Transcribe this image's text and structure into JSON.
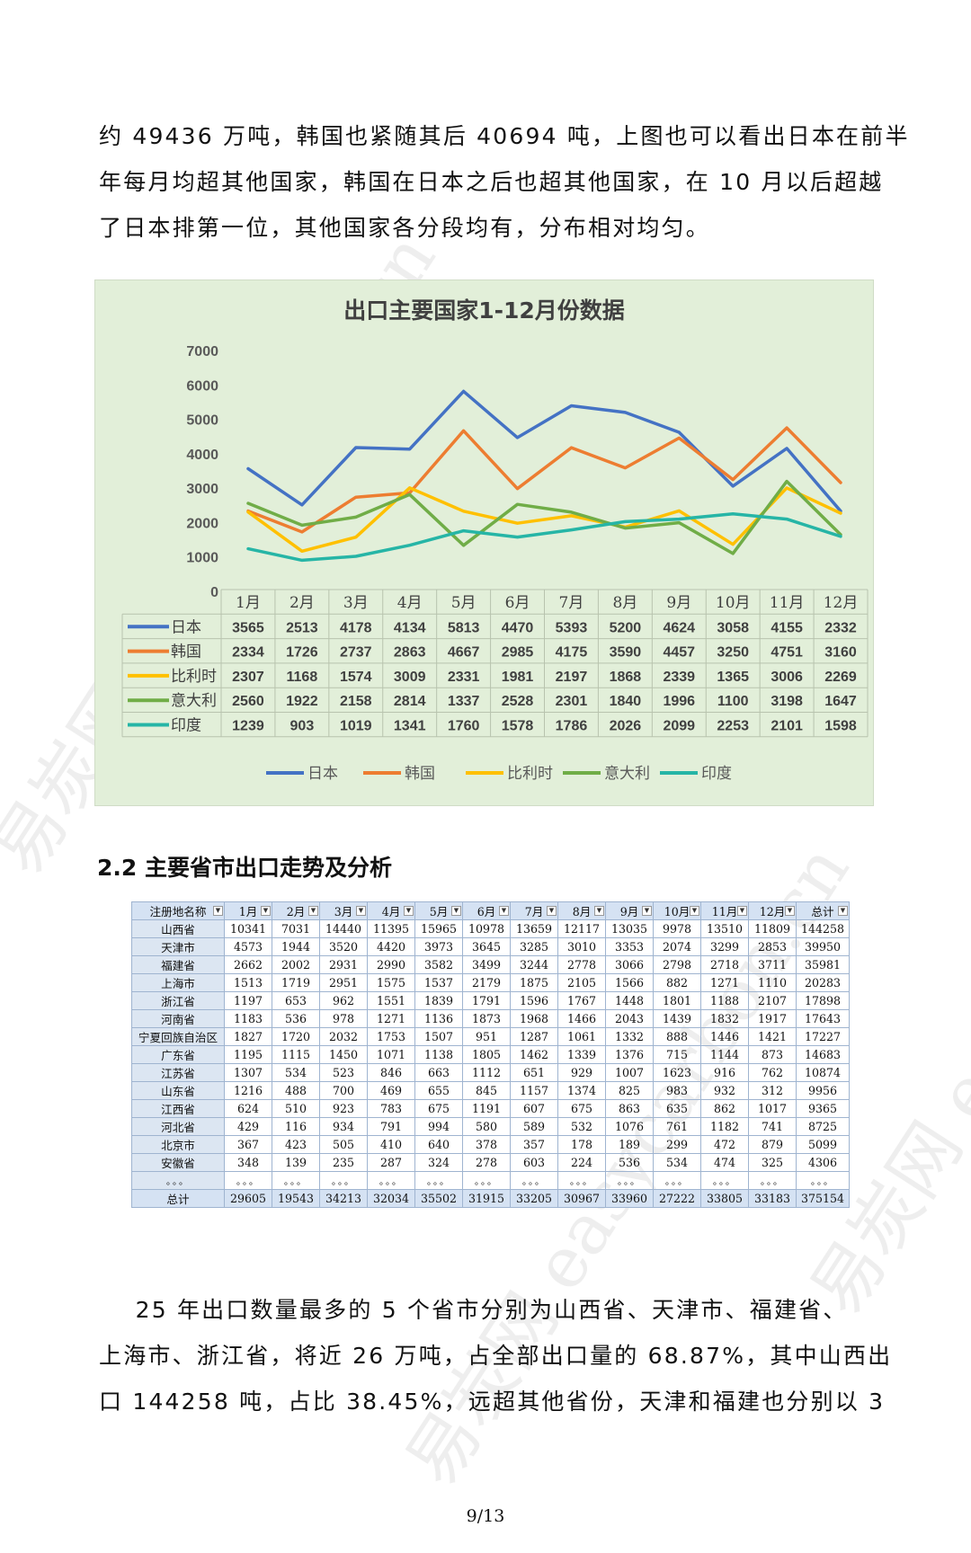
{
  "paragraph1": [
    "约 49436 万吨，韩国也紧随其后 40694 吨，上图也可以看出日本在前半",
    "年每月均超其他国家，韩国在日本之后也超其他国家，在 10 月以后超越",
    "了日本排第一位，其他国家各分段均有，分布相对均匀。"
  ],
  "chart_data": {
    "type": "line",
    "title": "出口主要国家1-12月份数据",
    "categories": [
      "1月",
      "2月",
      "3月",
      "4月",
      "5月",
      "6月",
      "7月",
      "8月",
      "9月",
      "10月",
      "11月",
      "12月"
    ],
    "ylim": [
      0,
      7000
    ],
    "yticks": [
      "0",
      "1000",
      "2000",
      "3000",
      "4000",
      "5000",
      "6000",
      "7000"
    ],
    "grid": false,
    "legend_position": "bottom",
    "series": [
      {
        "name": "日本",
        "color": "#4472c4",
        "values": [
          3565,
          2513,
          4178,
          4134,
          5813,
          4470,
          5393,
          5200,
          4624,
          3058,
          4155,
          2332
        ]
      },
      {
        "name": "韩国",
        "color": "#ed7d31",
        "values": [
          2334,
          1726,
          2737,
          2863,
          4667,
          2985,
          4175,
          3590,
          4457,
          3250,
          4751,
          3160
        ]
      },
      {
        "name": "比利时",
        "color": "#ffc000",
        "values": [
          2307,
          1168,
          1574,
          3009,
          2331,
          1981,
          2197,
          1868,
          2339,
          1365,
          3006,
          2269
        ]
      },
      {
        "name": "意大利",
        "color": "#70ad47",
        "values": [
          2560,
          1922,
          2158,
          2814,
          1337,
          2528,
          2301,
          1840,
          1996,
          1100,
          3198,
          1647
        ]
      },
      {
        "name": "印度",
        "color": "#26b5a6",
        "values": [
          1239,
          903,
          1019,
          1341,
          1760,
          1578,
          1786,
          2026,
          2099,
          2253,
          2101,
          1598
        ]
      }
    ]
  },
  "section_heading": "2.2  主要省市出口走势及分析",
  "table": {
    "headers": [
      "注册地名称",
      "1月",
      "2月",
      "3月",
      "4月",
      "5月",
      "6月",
      "7月",
      "8月",
      "9月",
      "10月",
      "11月",
      "12月",
      "总计"
    ],
    "rows": [
      [
        "山西省",
        "10341",
        "7031",
        "14440",
        "11395",
        "15965",
        "10978",
        "13659",
        "12117",
        "13035",
        "9978",
        "13510",
        "11809",
        "144258"
      ],
      [
        "天津市",
        "4573",
        "1944",
        "3520",
        "4420",
        "3973",
        "3645",
        "3285",
        "3010",
        "3353",
        "2074",
        "3299",
        "2853",
        "39950"
      ],
      [
        "福建省",
        "2662",
        "2002",
        "2931",
        "2990",
        "3582",
        "3499",
        "3244",
        "2778",
        "3066",
        "2798",
        "2718",
        "3711",
        "35981"
      ],
      [
        "上海市",
        "1513",
        "1719",
        "2951",
        "1575",
        "1537",
        "2179",
        "1875",
        "2105",
        "1566",
        "882",
        "1271",
        "1110",
        "20283"
      ],
      [
        "浙江省",
        "1197",
        "653",
        "962",
        "1551",
        "1839",
        "1791",
        "1596",
        "1767",
        "1448",
        "1801",
        "1188",
        "2107",
        "17898"
      ],
      [
        "河南省",
        "1183",
        "536",
        "978",
        "1271",
        "1136",
        "1873",
        "1968",
        "1466",
        "2043",
        "1439",
        "1832",
        "1917",
        "17643"
      ],
      [
        "宁夏回族自治区",
        "1827",
        "1720",
        "2032",
        "1753",
        "1507",
        "951",
        "1287",
        "1061",
        "1332",
        "888",
        "1446",
        "1421",
        "17227"
      ],
      [
        "广东省",
        "1195",
        "1115",
        "1450",
        "1071",
        "1138",
        "1805",
        "1462",
        "1339",
        "1376",
        "715",
        "1144",
        "873",
        "14683"
      ],
      [
        "江苏省",
        "1307",
        "534",
        "523",
        "846",
        "663",
        "1112",
        "651",
        "929",
        "1007",
        "1623",
        "916",
        "762",
        "10874"
      ],
      [
        "山东省",
        "1216",
        "488",
        "700",
        "469",
        "655",
        "845",
        "1157",
        "1374",
        "825",
        "983",
        "932",
        "312",
        "9956"
      ],
      [
        "江西省",
        "624",
        "510",
        "923",
        "783",
        "675",
        "1191",
        "607",
        "675",
        "863",
        "635",
        "862",
        "1017",
        "9365"
      ],
      [
        "河北省",
        "429",
        "116",
        "934",
        "791",
        "994",
        "580",
        "589",
        "532",
        "1076",
        "761",
        "1182",
        "741",
        "8725"
      ],
      [
        "北京市",
        "367",
        "423",
        "505",
        "410",
        "640",
        "378",
        "357",
        "178",
        "189",
        "299",
        "472",
        "879",
        "5099"
      ],
      [
        "安徽省",
        "348",
        "139",
        "235",
        "287",
        "324",
        "278",
        "603",
        "224",
        "536",
        "534",
        "474",
        "325",
        "4306"
      ],
      [
        "。。。",
        "。。。",
        "。。。",
        "。。。",
        "。。。",
        "。。。",
        "。。。",
        "。。。",
        "。。。",
        "。。。",
        "。。。",
        "。。。",
        "。。。",
        "。。。"
      ]
    ],
    "total": [
      "总计",
      "29605",
      "19543",
      "34213",
      "32034",
      "35502",
      "31915",
      "33205",
      "30967",
      "33960",
      "27222",
      "33805",
      "33183",
      "375154"
    ]
  },
  "paragraph2": [
    "    25 年出口数量最多的 5 个省市分别为山西省、天津市、福建省、",
    "上海市、浙江省，将近 26 万吨，占全部出口量的 68.87%，其中山西出",
    "口 144258 吨，占比 38.45%，远超其他省份，天津和福建也分别以 3"
  ],
  "page_number": "9/13",
  "watermark": "易炭网 easycarbon.cn"
}
